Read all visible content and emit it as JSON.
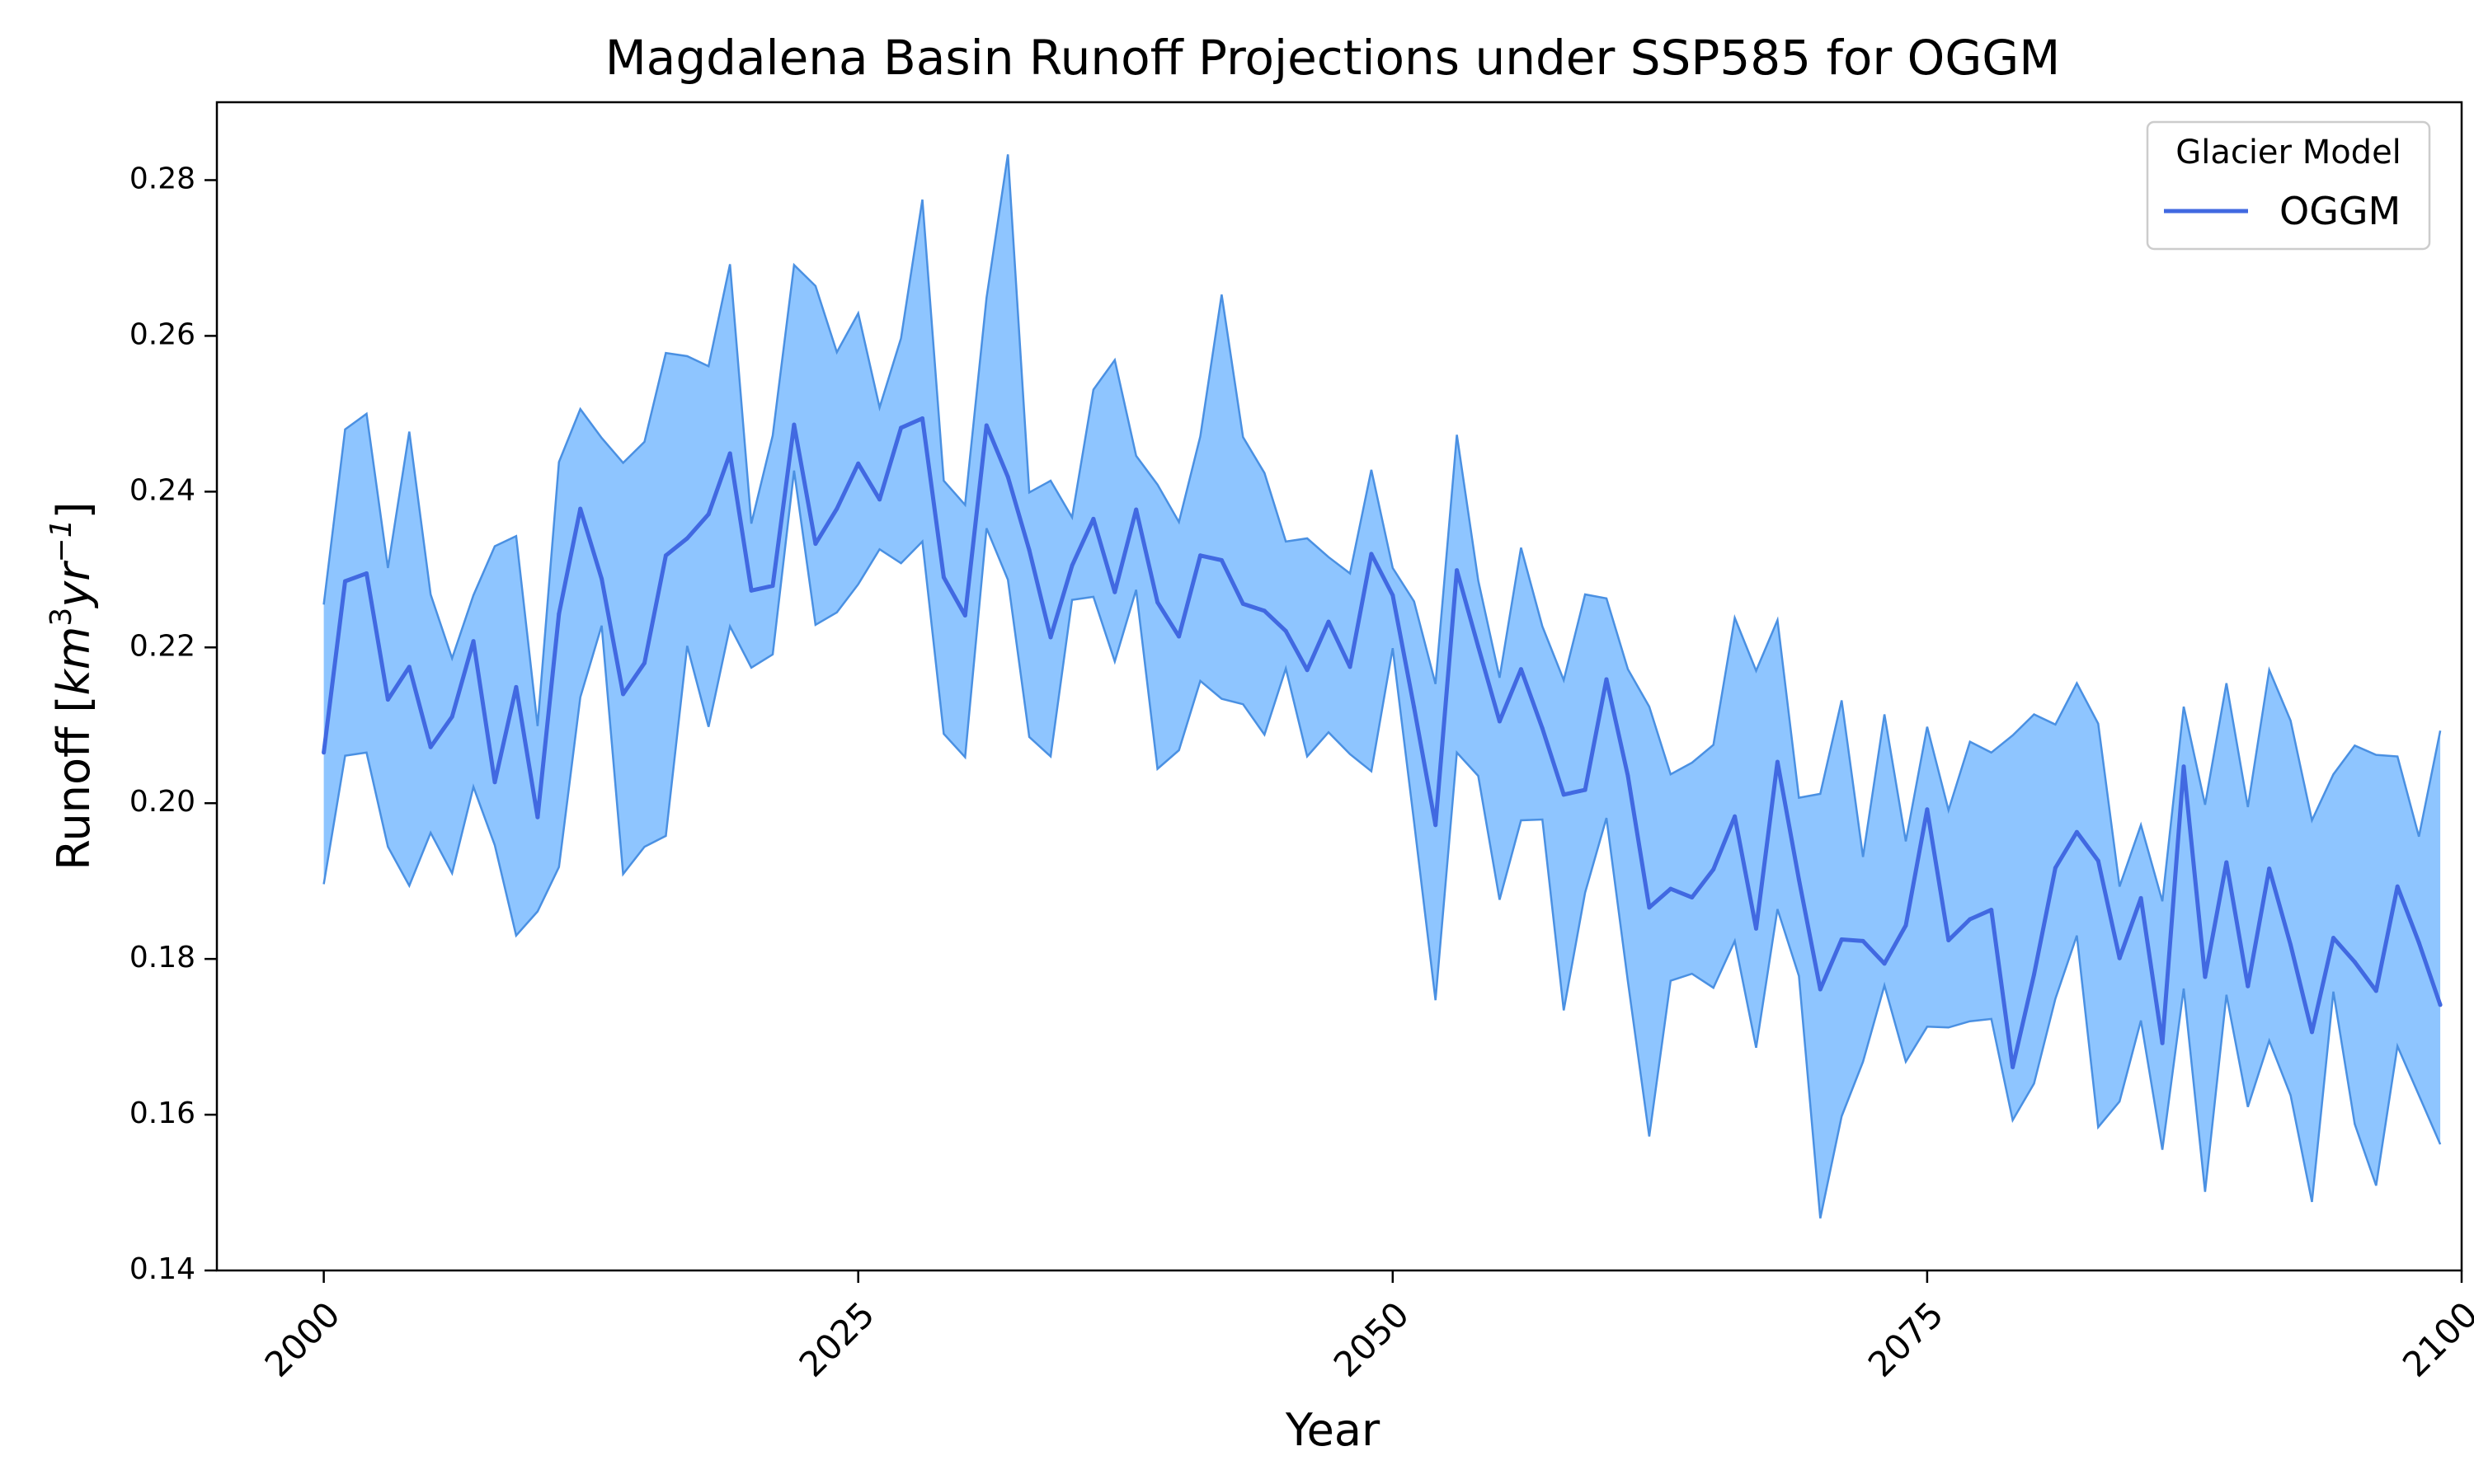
{
  "chart_data": {
    "type": "line",
    "title": "Magdalena Basin Runoff Projections under SSP585 for OGGM",
    "xlabel": "Year",
    "ylabel": "Runoff [km³yr⁻¹]",
    "ylabel_parts": {
      "prefix": "Runoff [",
      "base1": "km",
      "sup1": "3",
      "base2": "yr",
      "sup2": "−1",
      "suffix": "]"
    },
    "xlim": [
      1995,
      2100
    ],
    "ylim": [
      0.14,
      0.29
    ],
    "x_ticks": [
      2000,
      2025,
      2050,
      2075,
      2100
    ],
    "y_ticks": [
      0.14,
      0.16,
      0.18,
      0.2,
      0.22,
      0.24,
      0.26,
      0.28
    ],
    "x_tick_labels": [
      "2000",
      "2025",
      "2050",
      "2075",
      "2100"
    ],
    "y_tick_labels": [
      "0.14",
      "0.16",
      "0.18",
      "0.20",
      "0.22",
      "0.24",
      "0.26",
      "0.28"
    ],
    "grid": false,
    "legend": {
      "title": "Glacier Model",
      "placement": "top-right",
      "entries": [
        "OGGM"
      ]
    },
    "colors": {
      "line": "#4169E1",
      "band_fill": "#8EC5FF",
      "band_edge": "#4A90E2"
    },
    "x": [
      2000,
      2001,
      2002,
      2003,
      2004,
      2005,
      2006,
      2007,
      2008,
      2009,
      2010,
      2011,
      2012,
      2013,
      2014,
      2015,
      2016,
      2017,
      2018,
      2019,
      2020,
      2021,
      2022,
      2023,
      2024,
      2025,
      2026,
      2027,
      2028,
      2029,
      2030,
      2031,
      2032,
      2033,
      2034,
      2035,
      2036,
      2037,
      2038,
      2039,
      2040,
      2041,
      2042,
      2043,
      2044,
      2045,
      2046,
      2047,
      2048,
      2049,
      2050,
      2051,
      2052,
      2053,
      2054,
      2055,
      2056,
      2057,
      2058,
      2059,
      2060,
      2061,
      2062,
      2063,
      2064,
      2065,
      2066,
      2067,
      2068,
      2069,
      2070,
      2071,
      2072,
      2073,
      2074,
      2075,
      2076,
      2077,
      2078,
      2079,
      2080,
      2081,
      2082,
      2083,
      2084,
      2085,
      2086,
      2087,
      2088,
      2089,
      2090,
      2091,
      2092,
      2093,
      2094,
      2095,
      2096,
      2097,
      2098,
      2099
    ],
    "series": [
      {
        "name": "OGGM",
        "values": [
          0.2065,
          0.2285,
          0.2295,
          0.2133,
          0.2175,
          0.2072,
          0.2111,
          0.2208,
          0.2027,
          0.2149,
          0.1982,
          0.2243,
          0.2378,
          0.2288,
          0.214,
          0.218,
          0.2318,
          0.234,
          0.2371,
          0.2449,
          0.2273,
          0.2279,
          0.2486,
          0.2333,
          0.2378,
          0.2436,
          0.239,
          0.2482,
          0.2494,
          0.229,
          0.2241,
          0.2485,
          0.2419,
          0.2325,
          0.2213,
          0.2305,
          0.2365,
          0.2271,
          0.2377,
          0.2258,
          0.2214,
          0.2318,
          0.2312,
          0.2256,
          0.2247,
          0.2221,
          0.2171,
          0.2233,
          0.2175,
          0.232,
          0.2267,
          0.2123,
          0.1972,
          0.2299,
          0.2201,
          0.2105,
          0.2172,
          0.2096,
          0.2011,
          0.2017,
          0.2159,
          0.2035,
          0.1866,
          0.189,
          0.1879,
          0.1915,
          0.1983,
          0.1839,
          0.2053,
          0.1902,
          0.1761,
          0.1825,
          0.1823,
          0.1794,
          0.1843,
          0.1992,
          0.1824,
          0.1851,
          0.1863,
          0.1661,
          0.178,
          0.1917,
          0.1963,
          0.1926,
          0.1801,
          0.1878,
          0.1692,
          0.2047,
          0.1777,
          0.1924,
          0.1765,
          0.1916,
          0.1818,
          0.1706,
          0.1827,
          0.1796,
          0.1759,
          0.1893,
          0.1821,
          0.1741
        ]
      }
    ],
    "band_upper": [
      0.2255,
      0.248,
      0.25,
      0.2302,
      0.2477,
      0.2268,
      0.2186,
      0.2267,
      0.233,
      0.2343,
      0.2099,
      0.2438,
      0.2506,
      0.2469,
      0.2437,
      0.2464,
      0.2578,
      0.2574,
      0.2561,
      0.2692,
      0.2359,
      0.2472,
      0.2691,
      0.2664,
      0.2579,
      0.2629,
      0.2508,
      0.2597,
      0.2775,
      0.2414,
      0.2383,
      0.2649,
      0.2833,
      0.2399,
      0.2414,
      0.2367,
      0.2531,
      0.2569,
      0.2446,
      0.2409,
      0.2361,
      0.2471,
      0.2653,
      0.247,
      0.2424,
      0.2336,
      0.234,
      0.2316,
      0.2295,
      0.2428,
      0.2302,
      0.2259,
      0.2153,
      0.2473,
      0.2286,
      0.2161,
      0.2328,
      0.2227,
      0.2158,
      0.2268,
      0.2263,
      0.2172,
      0.2124,
      0.2037,
      0.2052,
      0.2075,
      0.2238,
      0.217,
      0.2235,
      0.2007,
      0.2012,
      0.2132,
      0.1931,
      0.2114,
      0.1951,
      0.2098,
      0.1991,
      0.2079,
      0.2065,
      0.2087,
      0.2114,
      0.2101,
      0.2154,
      0.2102,
      0.1893,
      0.1972,
      0.1874,
      0.2124,
      0.1998,
      0.2154,
      0.1995,
      0.2171,
      0.2106,
      0.1978,
      0.2037,
      0.2074,
      0.2062,
      0.206,
      0.1957,
      0.2093
    ],
    "band_lower": [
      0.1896,
      0.2061,
      0.2065,
      0.1944,
      0.1894,
      0.1962,
      0.191,
      0.2021,
      0.1946,
      0.183,
      0.1861,
      0.1918,
      0.2136,
      0.2228,
      0.1909,
      0.1944,
      0.1958,
      0.2202,
      0.2098,
      0.2227,
      0.2174,
      0.2191,
      0.2427,
      0.2229,
      0.2245,
      0.2281,
      0.2326,
      0.2308,
      0.2336,
      0.2089,
      0.2059,
      0.2353,
      0.2287,
      0.2085,
      0.206,
      0.2261,
      0.2265,
      0.2182,
      0.2274,
      0.2044,
      0.2068,
      0.2157,
      0.2134,
      0.2127,
      0.2088,
      0.2173,
      0.206,
      0.2091,
      0.2063,
      0.2041,
      0.2199,
      0.1976,
      0.1747,
      0.2065,
      0.2035,
      0.1876,
      0.1978,
      0.1979,
      0.1734,
      0.1885,
      0.1981,
      0.1771,
      0.1572,
      0.1772,
      0.1781,
      0.1763,
      0.1823,
      0.1686,
      0.1864,
      0.1778,
      0.1467,
      0.1598,
      0.1668,
      0.1766,
      0.1668,
      0.1713,
      0.1712,
      0.172,
      0.1723,
      0.1593,
      0.164,
      0.1749,
      0.183,
      0.1584,
      0.1617,
      0.1721,
      0.1555,
      0.1762,
      0.1501,
      0.1754,
      0.161,
      0.1695,
      0.1625,
      0.1488,
      0.1758,
      0.1588,
      0.1509,
      0.1688,
      0.1625,
      0.1562
    ]
  }
}
